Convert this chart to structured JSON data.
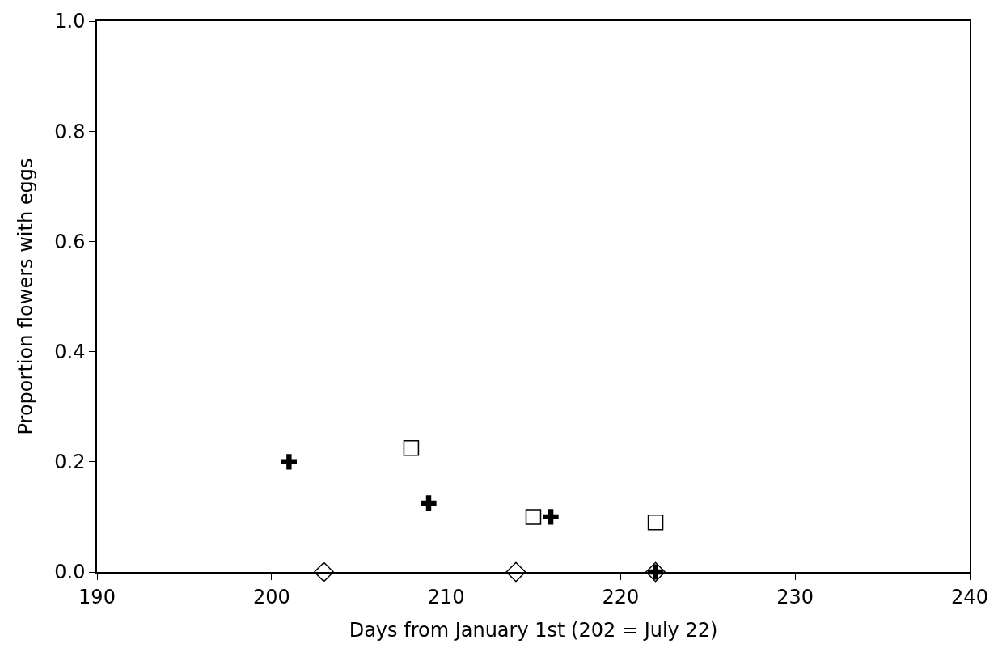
{
  "chart_data": {
    "type": "scatter",
    "xlabel": "Days from January 1st (202 = July 22)",
    "ylabel": "Proportion flowers with eggs",
    "series": [
      {
        "color": "#000000",
        "marker": "cross",
        "x": [
          201,
          209,
          216,
          222
        ],
        "values": [
          0.2,
          0.125,
          0.1,
          0
        ]
      },
      {
        "color": "#000000",
        "marker": "square",
        "x": [
          208,
          215,
          222
        ],
        "values": [
          0.225,
          0.1,
          0.09
        ]
      },
      {
        "color": "#000000",
        "marker": "diamond",
        "x": [
          203,
          214,
          222
        ],
        "values": [
          0,
          0,
          0
        ]
      }
    ],
    "xlim": [
      190,
      240
    ],
    "xticks": [
      190,
      200,
      210,
      220,
      230,
      240
    ],
    "ylim": [
      0,
      1
    ],
    "yticks": [
      {
        "value": 0,
        "label": "0.0"
      },
      {
        "value": 0.2,
        "label": "0.2"
      },
      {
        "value": 0.4,
        "label": "0.4"
      },
      {
        "value": 0.6,
        "label": "0.6"
      },
      {
        "value": 0.8,
        "label": "0.8"
      },
      {
        "value": 1,
        "label": "1.0"
      }
    ],
    "grid": false
  }
}
